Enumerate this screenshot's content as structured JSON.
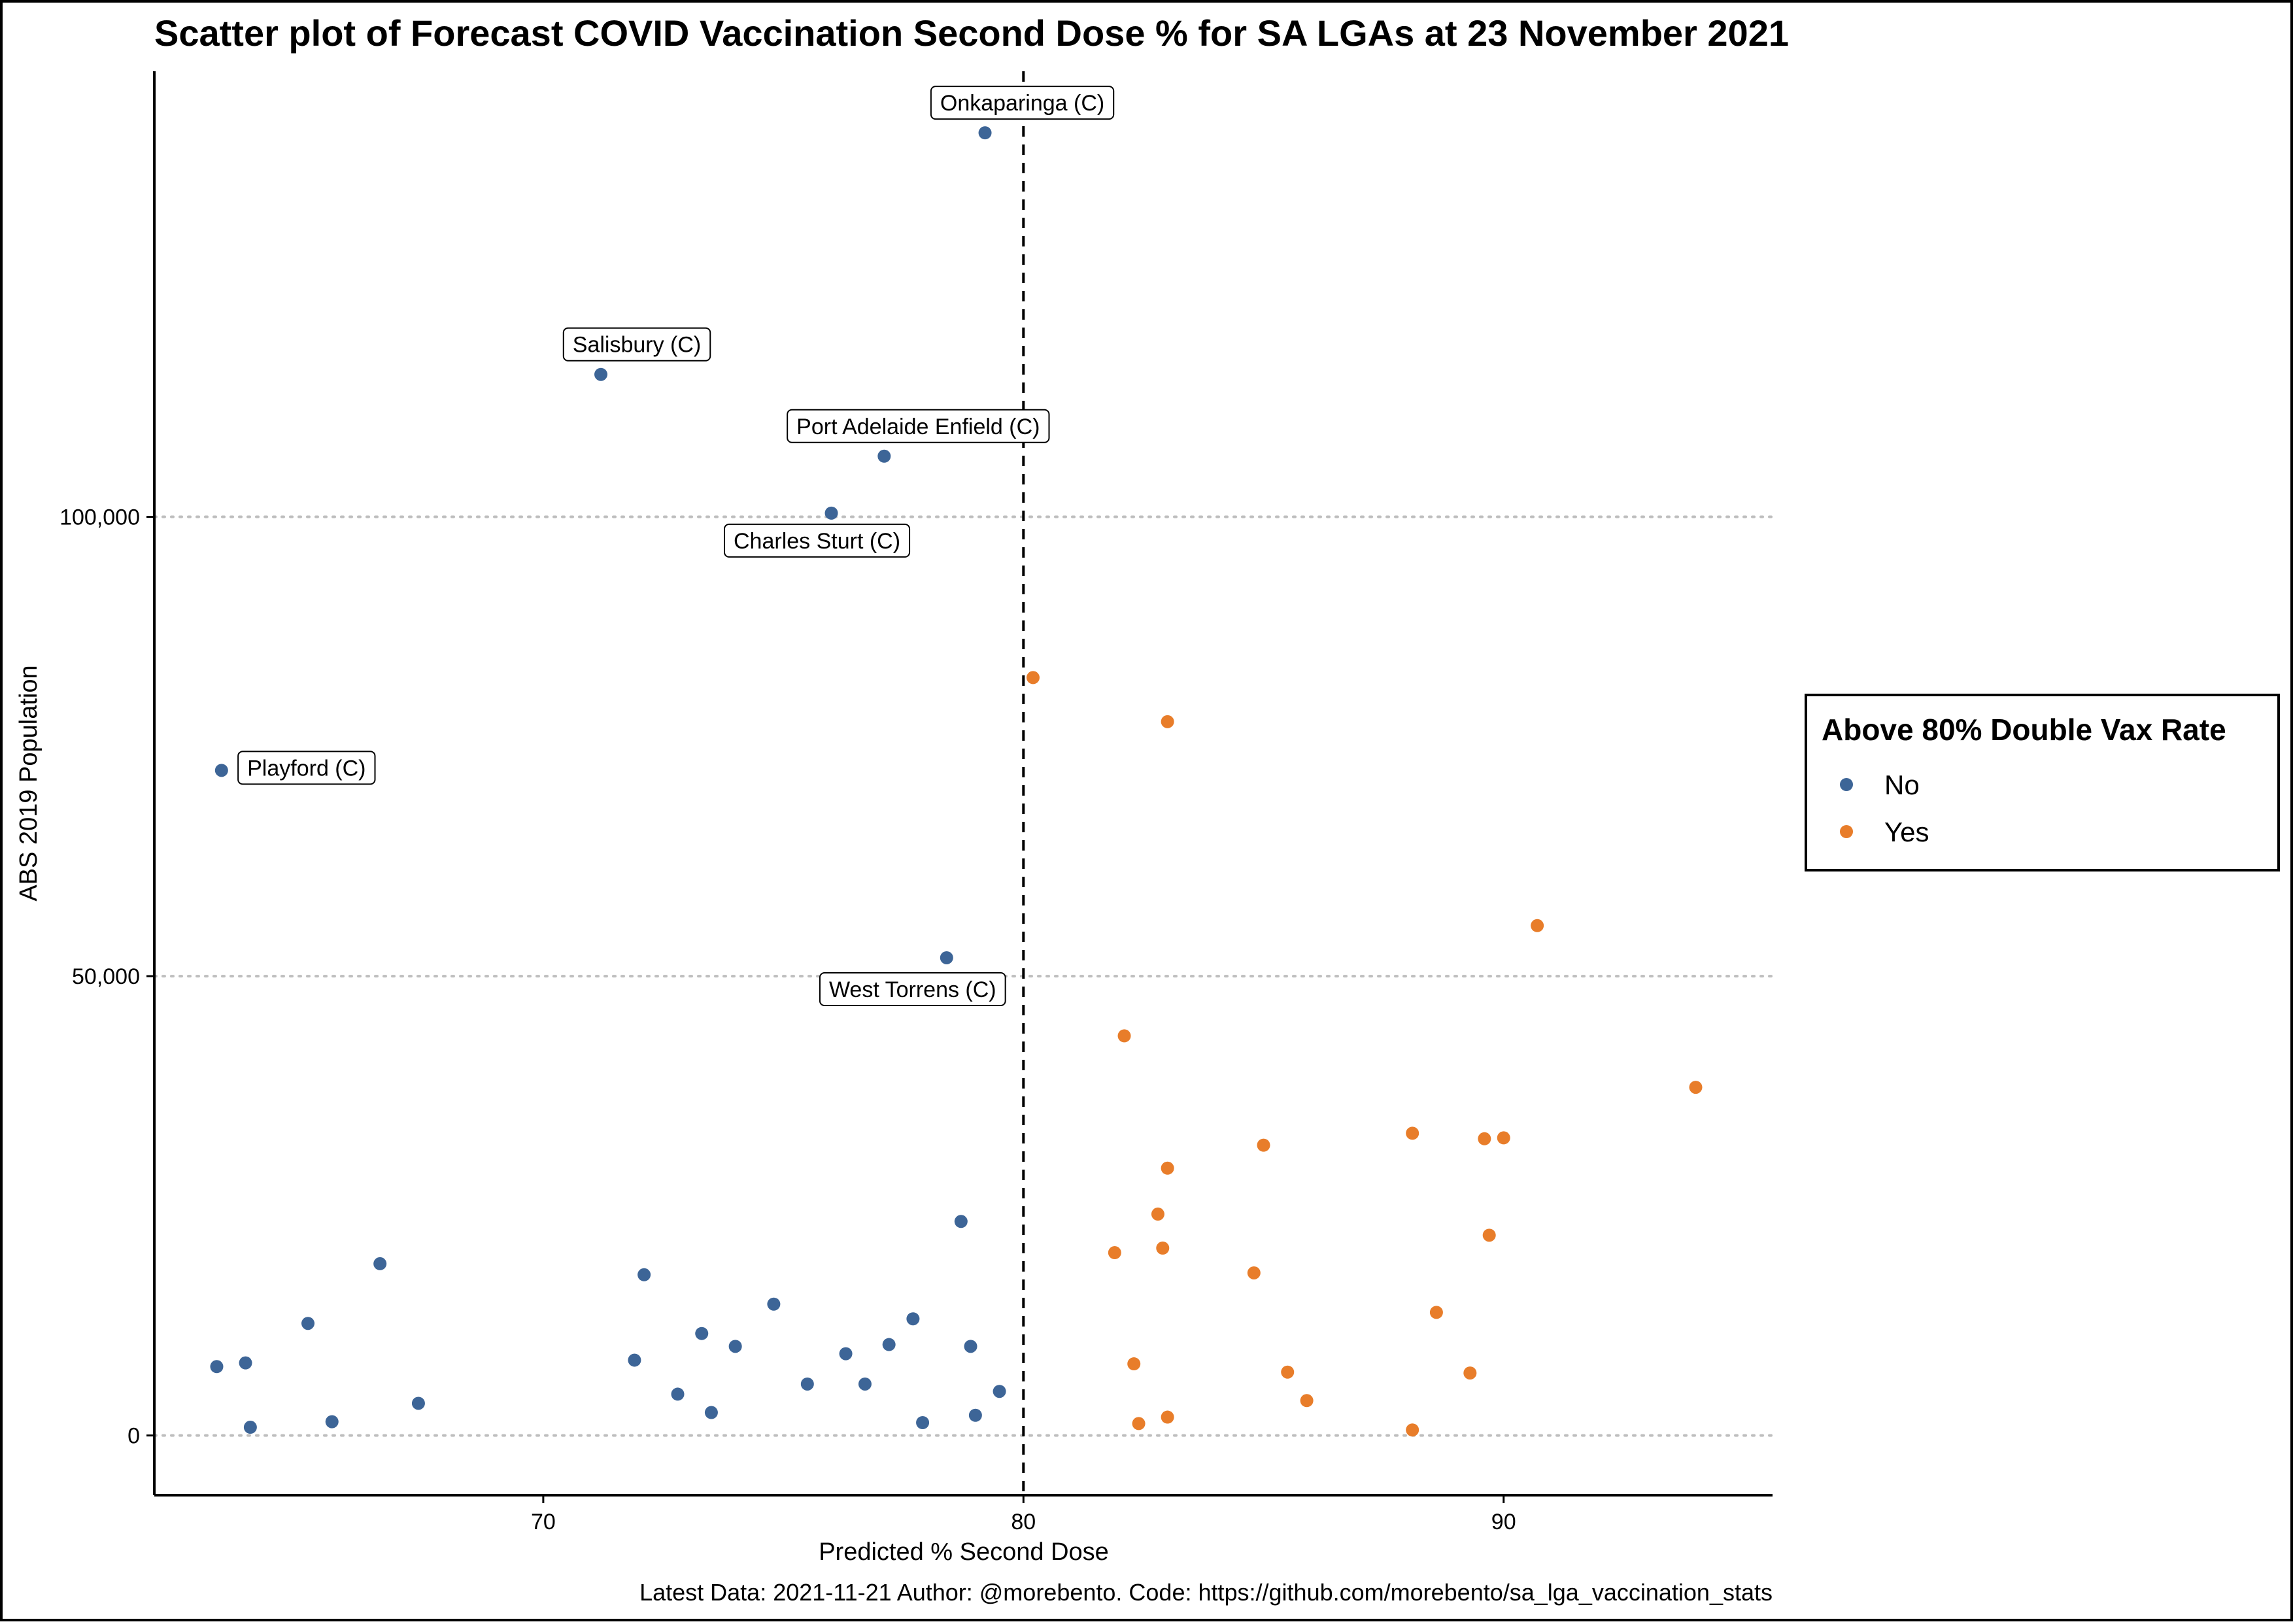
{
  "chart_data": {
    "type": "scatter",
    "title": "Scatter plot of Forecast COVID Vaccination Second Dose % for SA LGAs at 23 November 2021",
    "xlabel": "Predicted % Second Dose",
    "ylabel": "ABS 2019 Population",
    "caption": "Latest Data: 2021-11-21 Author: @morebento. Code: https://github.com/morebento/sa_lga_vaccination_stats",
    "xlim": [
      61.9,
      95.6
    ],
    "ylim": [
      -6500,
      148500
    ],
    "x_ticks": [
      {
        "value": 70,
        "label": "70"
      },
      {
        "value": 80,
        "label": "80"
      },
      {
        "value": 90,
        "label": "90"
      }
    ],
    "y_ticks": [
      {
        "value": 0,
        "label": "0"
      },
      {
        "value": 50000,
        "label": "50,000"
      },
      {
        "value": 100000,
        "label": "100,000"
      }
    ],
    "grid": {
      "horizontal": true,
      "vertical": false,
      "style": "dotted",
      "color": "#bebebe"
    },
    "reference_line": {
      "x": 80,
      "style": "dashed",
      "color": "#000000"
    },
    "legend": {
      "title": "Above 80% Double Vax Rate",
      "position": "right",
      "entries": [
        {
          "label": "No",
          "color": "#3d6597"
        },
        {
          "label": "Yes",
          "color": "#e87d2a"
        }
      ]
    },
    "series": [
      {
        "name": "No",
        "color": "#3d6597",
        "points": [
          {
            "x": 79.2,
            "y": 141800,
            "label": "Onkaparinga (C)"
          },
          {
            "x": 71.2,
            "y": 115500,
            "label": "Salisbury (C)"
          },
          {
            "x": 77.1,
            "y": 106600,
            "label": "Port Adelaide Enfield (C)"
          },
          {
            "x": 76.0,
            "y": 100400,
            "label": "Charles Sturt (C)"
          },
          {
            "x": 63.3,
            "y": 72400,
            "label": "Playford (C)"
          },
          {
            "x": 78.4,
            "y": 52000,
            "label": "West Torrens (C)"
          },
          {
            "x": 78.7,
            "y": 23300
          },
          {
            "x": 66.6,
            "y": 18700
          },
          {
            "x": 72.1,
            "y": 17500
          },
          {
            "x": 74.8,
            "y": 14300
          },
          {
            "x": 77.7,
            "y": 12700
          },
          {
            "x": 65.1,
            "y": 12200
          },
          {
            "x": 73.3,
            "y": 11100
          },
          {
            "x": 77.2,
            "y": 9900
          },
          {
            "x": 74.0,
            "y": 9700
          },
          {
            "x": 78.9,
            "y": 9700
          },
          {
            "x": 76.3,
            "y": 8900
          },
          {
            "x": 71.9,
            "y": 8200
          },
          {
            "x": 63.8,
            "y": 7900
          },
          {
            "x": 63.2,
            "y": 7500
          },
          {
            "x": 75.5,
            "y": 5600
          },
          {
            "x": 76.7,
            "y": 5600
          },
          {
            "x": 79.5,
            "y": 4800
          },
          {
            "x": 72.8,
            "y": 4500
          },
          {
            "x": 67.4,
            "y": 3500
          },
          {
            "x": 73.5,
            "y": 2500
          },
          {
            "x": 79.0,
            "y": 2200
          },
          {
            "x": 65.6,
            "y": 1500
          },
          {
            "x": 77.9,
            "y": 1400
          },
          {
            "x": 63.9,
            "y": 900
          }
        ]
      },
      {
        "name": "Yes",
        "color": "#e87d2a",
        "points": [
          {
            "x": 80.2,
            "y": 82500
          },
          {
            "x": 83.0,
            "y": 77700
          },
          {
            "x": 90.7,
            "y": 55500
          },
          {
            "x": 82.1,
            "y": 43500
          },
          {
            "x": 94.0,
            "y": 37900
          },
          {
            "x": 88.1,
            "y": 32900
          },
          {
            "x": 89.6,
            "y": 32300
          },
          {
            "x": 90.0,
            "y": 32400
          },
          {
            "x": 85.0,
            "y": 31600
          },
          {
            "x": 83.0,
            "y": 29100
          },
          {
            "x": 82.8,
            "y": 24100
          },
          {
            "x": 89.7,
            "y": 21800
          },
          {
            "x": 82.9,
            "y": 20400
          },
          {
            "x": 81.9,
            "y": 19900
          },
          {
            "x": 84.8,
            "y": 17700
          },
          {
            "x": 88.6,
            "y": 13400
          },
          {
            "x": 82.3,
            "y": 7800
          },
          {
            "x": 85.5,
            "y": 6900
          },
          {
            "x": 89.3,
            "y": 6800
          },
          {
            "x": 85.9,
            "y": 3800
          },
          {
            "x": 83.0,
            "y": 2000
          },
          {
            "x": 82.4,
            "y": 1300
          },
          {
            "x": 88.1,
            "y": 600
          }
        ]
      }
    ]
  }
}
